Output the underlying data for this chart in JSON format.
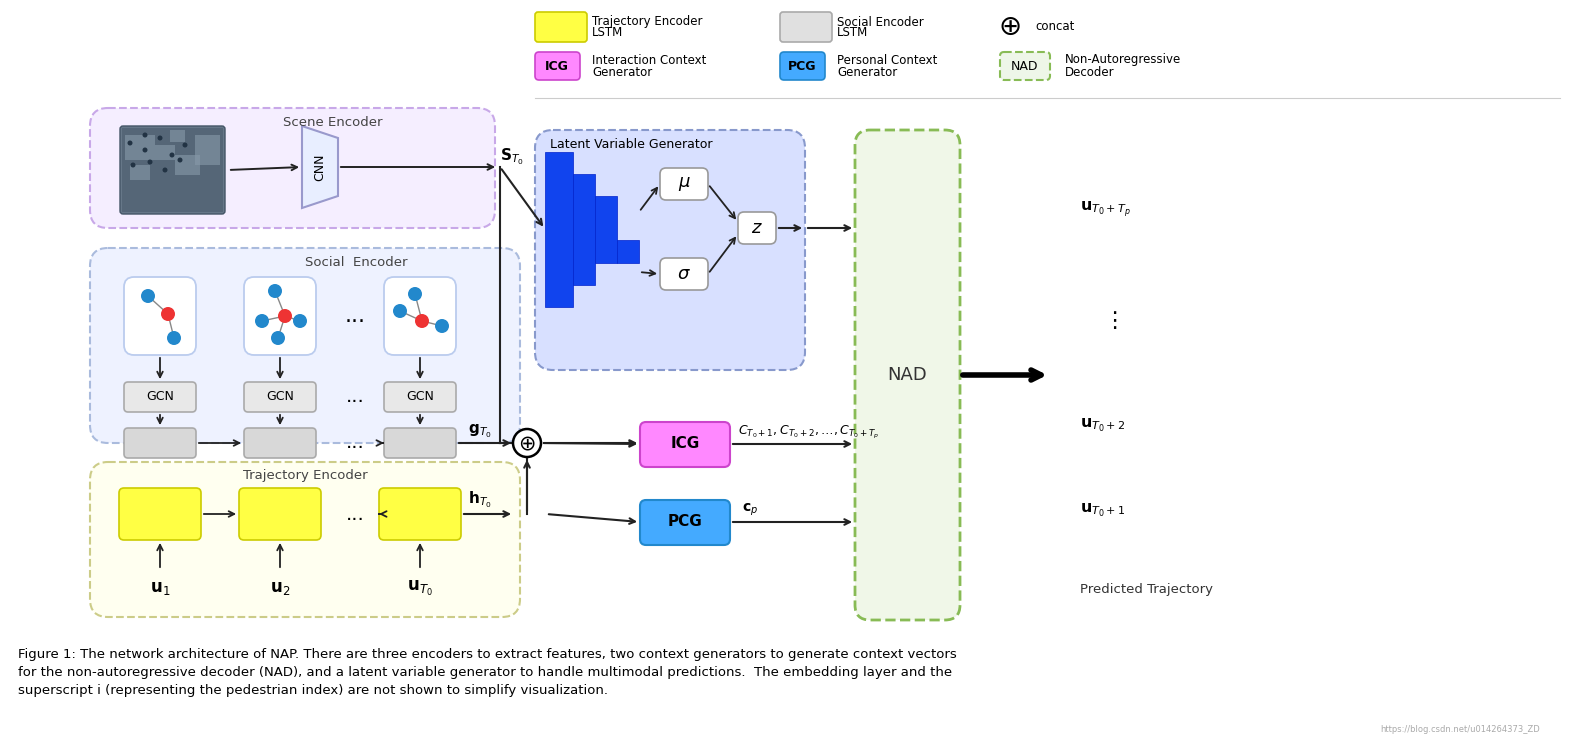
{
  "fig_width": 15.86,
  "fig_height": 7.4,
  "bg_color": "#ffffff",
  "caption_line1": "Figure 1: The network architecture of NAP. There are three encoders to extract features, two context generators to generate context vectors",
  "caption_line2": "for the non-autoregressive decoder (NAD), and a latent variable generator to handle multimodal predictions.  The embedding layer and the",
  "caption_line3": "superscript i (representing the pedestrian index) are not shown to simplify visualization.",
  "colors": {
    "scene_bg": "#f5eeff",
    "social_bg": "#eef2ff",
    "traj_bg": "#fffff0",
    "lvg_bg": "#d8e0ff",
    "nad_bg": "#f0f7e8",
    "blue_nn": "#1144ee",
    "gcn_box": "#e8e8e8",
    "gray_lstm": "#d8d8d8",
    "yellow_lstm": "#ffff44",
    "icg_color": "#ff66ff",
    "pcg_color": "#44aaff",
    "dot_blue": "#2288cc",
    "dot_red": "#ee3333",
    "graph_bg": "#ddeeff",
    "arrow": "#222222",
    "cnn_fill": "#e8eeff",
    "cnn_edge": "#9999cc"
  }
}
